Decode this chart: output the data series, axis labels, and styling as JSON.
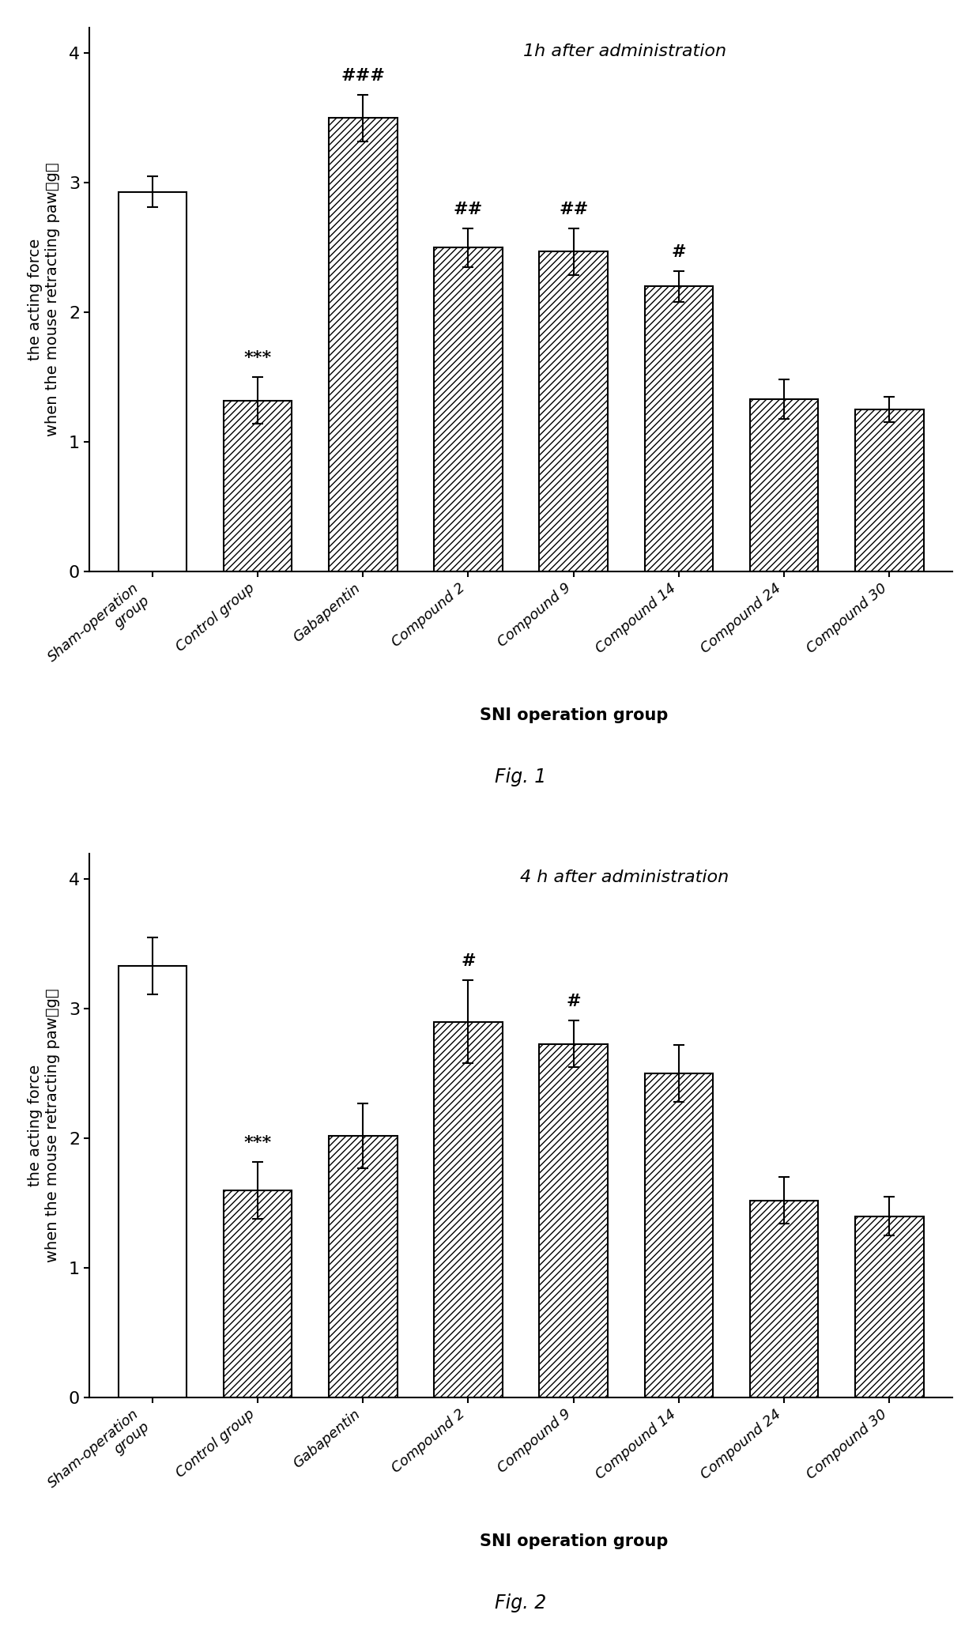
{
  "fig1": {
    "title": "1h after administration",
    "categories": [
      "Sham-operation\ngroup",
      "Control group",
      "Gabapentin",
      "Compound 2",
      "Compound 9",
      "Compound 14",
      "Compound 24",
      "Compound 30"
    ],
    "values": [
      2.93,
      1.32,
      3.5,
      2.5,
      2.47,
      2.2,
      1.33,
      1.25
    ],
    "errors": [
      0.12,
      0.18,
      0.18,
      0.15,
      0.18,
      0.12,
      0.15,
      0.1
    ],
    "annotations": [
      "",
      "***",
      "###",
      "##",
      "##",
      "#",
      "",
      ""
    ],
    "ylabel": "the acting force\nwhen the mouse retracting paw（g）",
    "ylim": [
      0,
      4.2
    ],
    "yticks": [
      0,
      1,
      2,
      3,
      4
    ],
    "sni_label": "SNI operation group",
    "fig_label": "Fig. 1"
  },
  "fig2": {
    "title": "4 h after administration",
    "categories": [
      "Sham-operation\ngroup",
      "Control group",
      "Gabapentin",
      "Compound 2",
      "Compound 9",
      "Compound 14",
      "Compound 24",
      "Compound 30"
    ],
    "values": [
      3.33,
      1.6,
      2.02,
      2.9,
      2.73,
      2.5,
      1.52,
      1.4
    ],
    "errors": [
      0.22,
      0.22,
      0.25,
      0.32,
      0.18,
      0.22,
      0.18,
      0.15
    ],
    "annotations": [
      "",
      "***",
      "",
      "#",
      "#",
      "",
      "",
      ""
    ],
    "ylabel": "the acting force\nwhen the mouse retracting paw（g）",
    "ylim": [
      0,
      4.2
    ],
    "yticks": [
      0,
      1,
      2,
      3,
      4
    ],
    "sni_label": "SNI operation group",
    "fig_label": "Fig. 2"
  },
  "edgecolor": "black",
  "background": "white"
}
